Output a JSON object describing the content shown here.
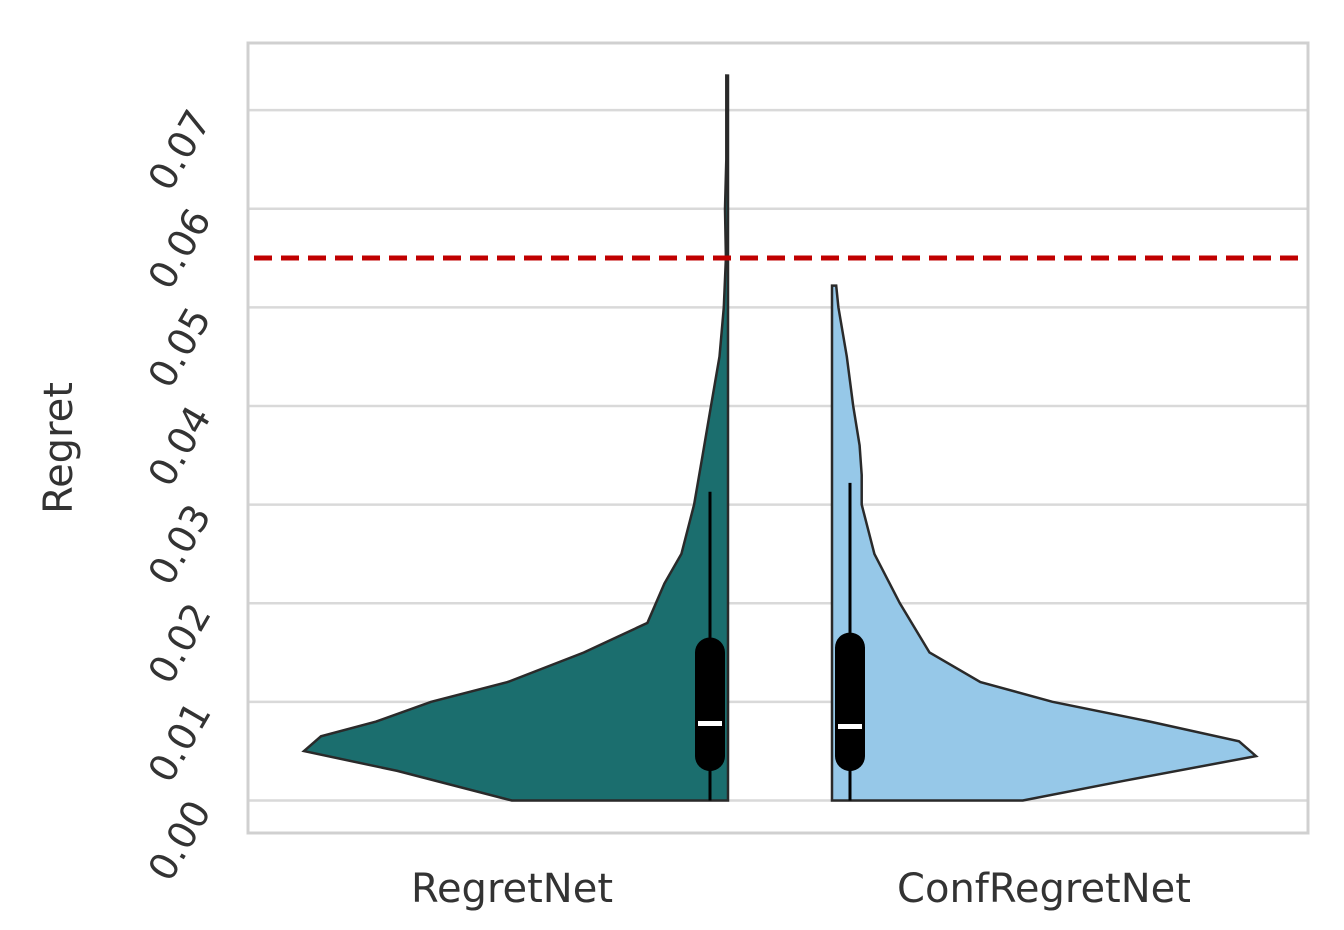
{
  "chart_data": {
    "type": "violin",
    "title": "",
    "xlabel": "",
    "ylabel": "Regret",
    "ylim": [
      -0.0033,
      0.0768
    ],
    "yticks": [
      "0.00",
      "0.01",
      "0.02",
      "0.03",
      "0.04",
      "0.05",
      "0.06",
      "0.07"
    ],
    "ytick_values": [
      0.0,
      0.01,
      0.02,
      0.03,
      0.04,
      0.05,
      0.06,
      0.07
    ],
    "grid": true,
    "reference_line": {
      "y": 0.055,
      "color": "#c00000",
      "style": "dashed"
    },
    "categories": [
      "RegretNet",
      "ConfRegretNet"
    ],
    "series": [
      {
        "category": "RegretNet",
        "side": "left",
        "color": "#1b6e6e",
        "density": [
          [
            0.0,
            0.51
          ],
          [
            0.003,
            0.78
          ],
          [
            0.005,
            1.0
          ],
          [
            0.0065,
            0.96
          ],
          [
            0.008,
            0.83
          ],
          [
            0.01,
            0.7
          ],
          [
            0.012,
            0.52
          ],
          [
            0.015,
            0.34
          ],
          [
            0.018,
            0.19
          ],
          [
            0.022,
            0.15
          ],
          [
            0.025,
            0.11
          ],
          [
            0.03,
            0.08
          ],
          [
            0.035,
            0.06
          ],
          [
            0.04,
            0.04
          ],
          [
            0.045,
            0.02
          ],
          [
            0.05,
            0.01
          ],
          [
            0.055,
            0.005
          ],
          [
            0.06,
            0.007
          ],
          [
            0.065,
            0.004
          ],
          [
            0.07,
            0.004
          ],
          [
            0.0735,
            0.004
          ]
        ],
        "box": {
          "whisker_low": 0.0,
          "q1": 0.0045,
          "median": 0.0078,
          "q3": 0.015,
          "whisker_high": 0.0313
        }
      },
      {
        "category": "ConfRegretNet",
        "side": "right",
        "color": "#96c8e8",
        "density": [
          [
            0.0,
            0.45
          ],
          [
            0.002,
            0.69
          ],
          [
            0.0045,
            1.0
          ],
          [
            0.006,
            0.96
          ],
          [
            0.008,
            0.75
          ],
          [
            0.01,
            0.52
          ],
          [
            0.012,
            0.35
          ],
          [
            0.015,
            0.23
          ],
          [
            0.02,
            0.16
          ],
          [
            0.025,
            0.1
          ],
          [
            0.03,
            0.07
          ],
          [
            0.033,
            0.07
          ],
          [
            0.036,
            0.065
          ],
          [
            0.04,
            0.05
          ],
          [
            0.045,
            0.035
          ],
          [
            0.05,
            0.015
          ],
          [
            0.0522,
            0.01
          ]
        ],
        "box": {
          "whisker_low": 0.0,
          "q1": 0.0045,
          "median": 0.0075,
          "q3": 0.0155,
          "whisker_high": 0.0322
        }
      }
    ]
  }
}
